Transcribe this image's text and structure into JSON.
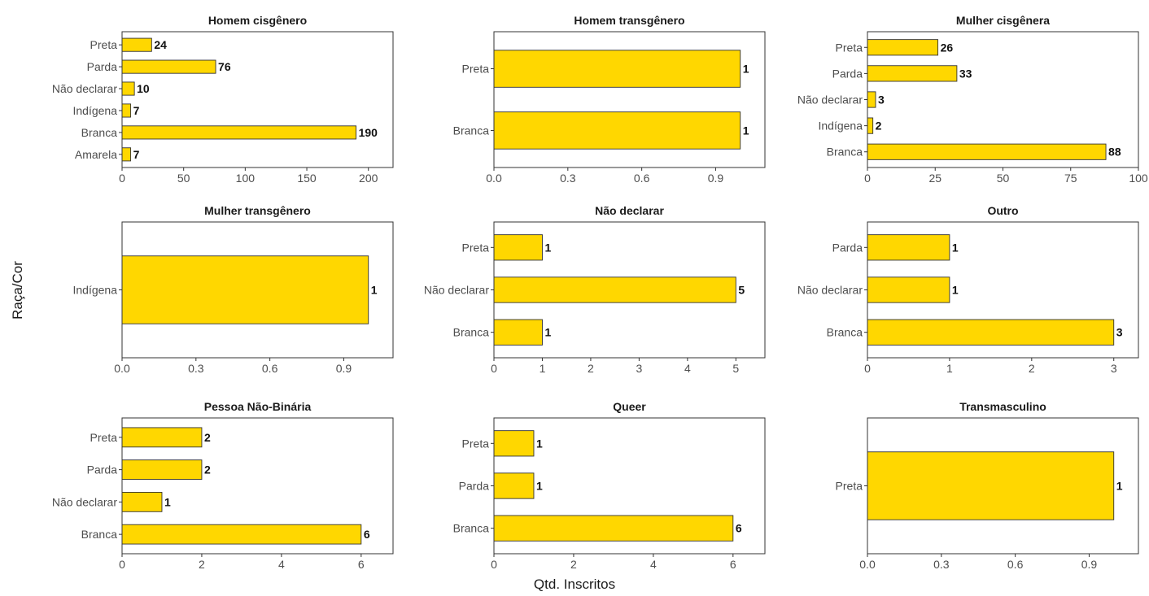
{
  "figure": {
    "xlabel": "Qtd. Inscritos",
    "ylabel": "Raça/Cor",
    "bar_color": "#FFD700",
    "bar_outline": "#333333",
    "panel_border": "#333333",
    "background": "#ffffff"
  },
  "chart_data": [
    {
      "type": "bar",
      "orientation": "horizontal",
      "title": "Homem cisgênero",
      "categories": [
        "Amarela",
        "Branca",
        "Indígena",
        "Não declarar",
        "Parda",
        "Preta"
      ],
      "values": [
        7,
        190,
        7,
        10,
        76,
        24
      ],
      "value_labels": [
        "7",
        "190",
        "7",
        "10",
        "76",
        "24"
      ],
      "xlim": [
        0,
        220
      ],
      "xticks": [
        0,
        50,
        100,
        150,
        200
      ],
      "xtick_labels": [
        "0",
        "50",
        "100",
        "150",
        "200"
      ]
    },
    {
      "type": "bar",
      "orientation": "horizontal",
      "title": "Homem transgênero",
      "categories": [
        "Branca",
        "Preta"
      ],
      "values": [
        1,
        1
      ],
      "value_labels": [
        "1",
        "1"
      ],
      "xlim": [
        0,
        1.1
      ],
      "xticks": [
        0,
        0.3,
        0.6,
        0.9
      ],
      "xtick_labels": [
        "0.0",
        "0.3",
        "0.6",
        "0.9"
      ]
    },
    {
      "type": "bar",
      "orientation": "horizontal",
      "title": "Mulher cisgênera",
      "categories": [
        "Branca",
        "Indígena",
        "Não declarar",
        "Parda",
        "Preta"
      ],
      "values": [
        88,
        2,
        3,
        33,
        26
      ],
      "value_labels": [
        "88",
        "2",
        "3",
        "33",
        "26"
      ],
      "xlim": [
        0,
        100
      ],
      "xticks": [
        0,
        25,
        50,
        75,
        100
      ],
      "xtick_labels": [
        "0",
        "25",
        "50",
        "75",
        "100"
      ]
    },
    {
      "type": "bar",
      "orientation": "horizontal",
      "title": "Mulher transgênero",
      "categories": [
        "Indígena"
      ],
      "values": [
        1
      ],
      "value_labels": [
        "1"
      ],
      "xlim": [
        0,
        1.1
      ],
      "xticks": [
        0,
        0.3,
        0.6,
        0.9
      ],
      "xtick_labels": [
        "0.0",
        "0.3",
        "0.6",
        "0.9"
      ]
    },
    {
      "type": "bar",
      "orientation": "horizontal",
      "title": "Não declarar",
      "categories": [
        "Branca",
        "Não declarar",
        "Preta"
      ],
      "values": [
        1,
        5,
        1
      ],
      "value_labels": [
        "1",
        "5",
        "1"
      ],
      "xlim": [
        0,
        5.6
      ],
      "xticks": [
        0,
        1,
        2,
        3,
        4,
        5
      ],
      "xtick_labels": [
        "0",
        "1",
        "2",
        "3",
        "4",
        "5"
      ]
    },
    {
      "type": "bar",
      "orientation": "horizontal",
      "title": "Outro",
      "categories": [
        "Branca",
        "Não declarar",
        "Parda"
      ],
      "values": [
        3,
        1,
        1
      ],
      "value_labels": [
        "3",
        "1",
        "1"
      ],
      "xlim": [
        0,
        3.3
      ],
      "xticks": [
        0,
        1,
        2,
        3
      ],
      "xtick_labels": [
        "0",
        "1",
        "2",
        "3"
      ]
    },
    {
      "type": "bar",
      "orientation": "horizontal",
      "title": "Pessoa Não-Binária",
      "categories": [
        "Branca",
        "Não declarar",
        "Parda",
        "Preta"
      ],
      "values": [
        6,
        1,
        2,
        2
      ],
      "value_labels": [
        "6",
        "1",
        "2",
        "2"
      ],
      "xlim": [
        0,
        6.8
      ],
      "xticks": [
        0,
        2,
        4,
        6
      ],
      "xtick_labels": [
        "0",
        "2",
        "4",
        "6"
      ]
    },
    {
      "type": "bar",
      "orientation": "horizontal",
      "title": "Queer",
      "categories": [
        "Branca",
        "Parda",
        "Preta"
      ],
      "values": [
        6,
        1,
        1
      ],
      "value_labels": [
        "6",
        "1",
        "1"
      ],
      "xlim": [
        0,
        6.8
      ],
      "xticks": [
        0,
        2,
        4,
        6
      ],
      "xtick_labels": [
        "0",
        "2",
        "4",
        "6"
      ]
    },
    {
      "type": "bar",
      "orientation": "horizontal",
      "title": "Transmasculino",
      "categories": [
        "Preta"
      ],
      "values": [
        1
      ],
      "value_labels": [
        "1"
      ],
      "xlim": [
        0,
        1.1
      ],
      "xticks": [
        0,
        0.3,
        0.6,
        0.9
      ],
      "xtick_labels": [
        "0.0",
        "0.3",
        "0.6",
        "0.9"
      ]
    }
  ]
}
